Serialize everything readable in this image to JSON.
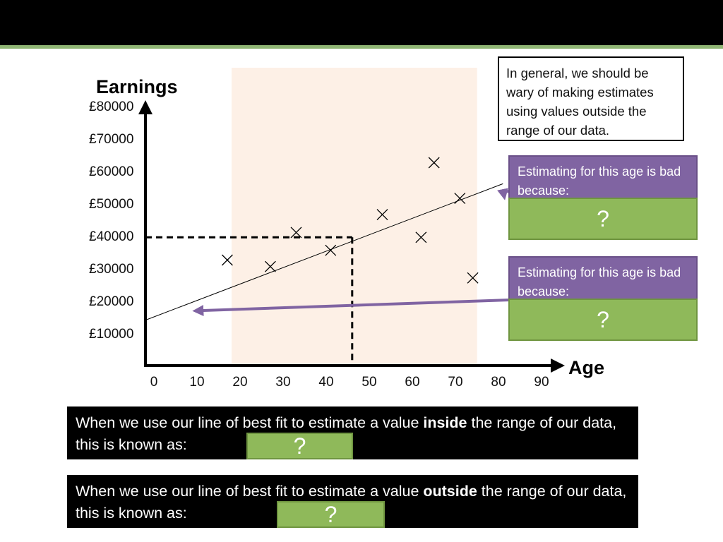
{
  "colors": {
    "shade": "#fdf0e6",
    "accent_purple": "#8064a2",
    "answer_green": "#8fb95a",
    "top_bar": "#000000",
    "top_stripe": "#8fb574"
  },
  "note": {
    "text": "In general, we should be wary of making estimates using values outside the range of our data."
  },
  "estimate_boxes": [
    {
      "heading": "Estimating for this age is bad because:",
      "answer": "?"
    },
    {
      "heading": "Estimating for this age is bad because:",
      "answer": "?"
    }
  ],
  "questions": [
    {
      "before": "When we use our line of best fit to estimate a value ",
      "bold": "inside",
      "after": " the range of our data, this is known as:",
      "answer": "?"
    },
    {
      "before": "When we use our line of best fit to estimate a value ",
      "bold": "outside",
      "after": " the range of our data, this is known as:",
      "answer": "?"
    }
  ],
  "chart_data": {
    "type": "scatter",
    "xlabel": "Age",
    "ylabel": "Earnings",
    "x_ticks": [
      "0",
      "10",
      "20",
      "30",
      "40",
      "50",
      "60",
      "70",
      "80",
      "90"
    ],
    "y_ticks": [
      "£10000",
      "£20000",
      "£30000",
      "£40000",
      "£50000",
      "£60000",
      "£70000",
      "£80000"
    ],
    "xlim": [
      0,
      92
    ],
    "ylim": [
      0,
      80000
    ],
    "points": [
      {
        "x": 19,
        "y": 32500
      },
      {
        "x": 29,
        "y": 30500
      },
      {
        "x": 35,
        "y": 41000
      },
      {
        "x": 43,
        "y": 35500
      },
      {
        "x": 55,
        "y": 46500
      },
      {
        "x": 64,
        "y": 39500
      },
      {
        "x": 67,
        "y": 62500
      },
      {
        "x": 73,
        "y": 51500
      },
      {
        "x": 76,
        "y": 27000
      }
    ],
    "best_fit": {
      "x1": 0,
      "y1": 14000,
      "x2": 83,
      "y2": 56000
    },
    "data_range_x": [
      20,
      77
    ],
    "estimate_line": {
      "x": 48,
      "y": 39500
    },
    "arrow_targets": [
      {
        "x": 82,
        "y": 55000
      },
      {
        "x": 11,
        "y": 16000
      }
    ]
  }
}
